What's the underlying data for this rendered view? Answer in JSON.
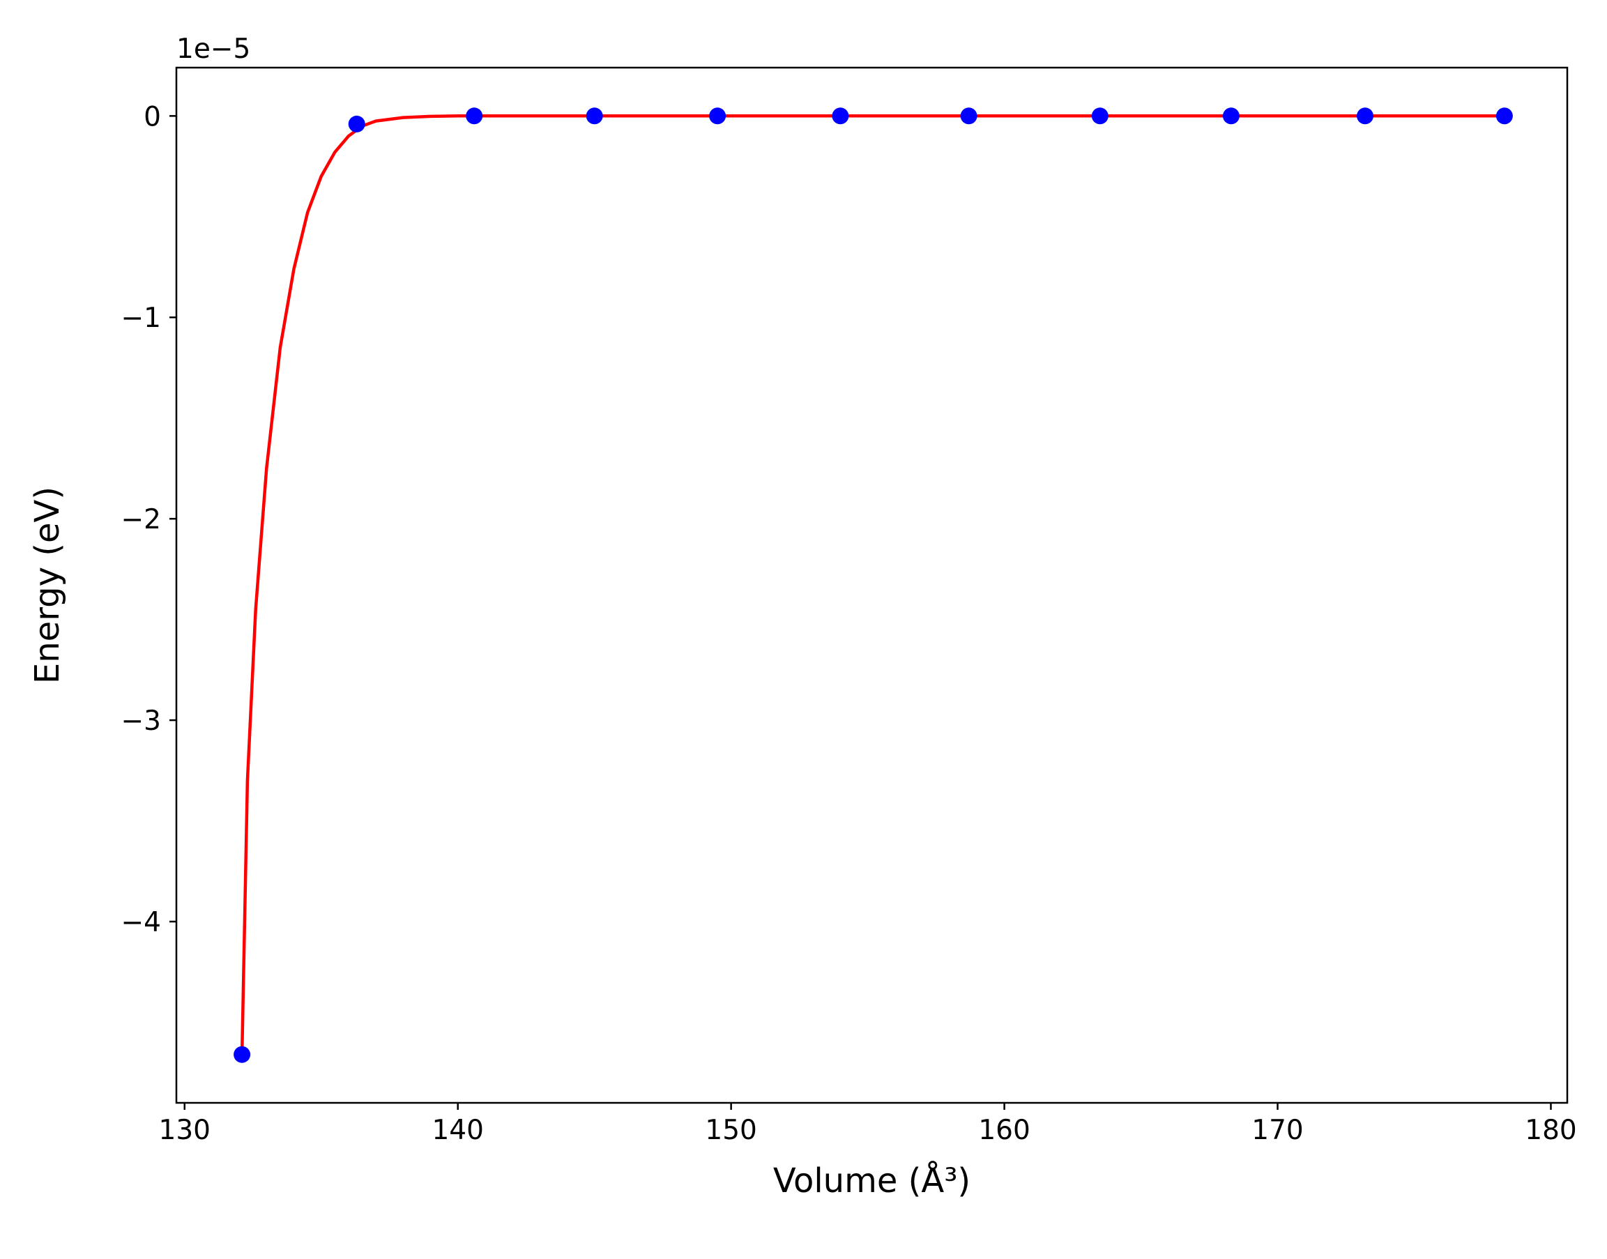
{
  "chart_data": {
    "type": "scatter",
    "xlabel": "Volume (Å³)",
    "ylabel": "Energy (eV)",
    "y_offset_text": "1e−5",
    "xlim": [
      129.7,
      180.6
    ],
    "ylim": [
      -4.9,
      0.24
    ],
    "x_ticks": [
      130,
      140,
      150,
      160,
      170,
      180
    ],
    "x_tick_labels": [
      "130",
      "140",
      "150",
      "160",
      "170",
      "180"
    ],
    "y_ticks": [
      0,
      -1,
      -2,
      -3,
      -4
    ],
    "y_tick_labels": [
      "0",
      "−1",
      "−2",
      "−3",
      "−4"
    ],
    "grid": false,
    "legend": "none",
    "series": [
      {
        "kind": "points",
        "color": "#0000ff",
        "x": [
          132.1,
          136.3,
          140.6,
          145.0,
          149.5,
          154.0,
          158.7,
          163.5,
          168.3,
          173.2,
          178.3
        ],
        "y": [
          -4.66,
          -0.04,
          0,
          0,
          0,
          0,
          0,
          0,
          0,
          0,
          0
        ]
      },
      {
        "kind": "fit-line",
        "color": "#ff0000",
        "x": [
          132.1,
          132.3,
          132.6,
          133.0,
          133.5,
          134.0,
          134.5,
          135.0,
          135.5,
          136.0,
          136.5,
          137.0,
          138.0,
          139.0,
          140.0,
          145.0,
          150.0,
          160.0,
          170.0,
          178.3
        ],
        "y": [
          -4.66,
          -3.3,
          -2.45,
          -1.75,
          -1.15,
          -0.76,
          -0.48,
          -0.3,
          -0.18,
          -0.1,
          -0.05,
          -0.025,
          -0.008,
          -0.002,
          0,
          0,
          0,
          0,
          0,
          0
        ]
      }
    ]
  }
}
